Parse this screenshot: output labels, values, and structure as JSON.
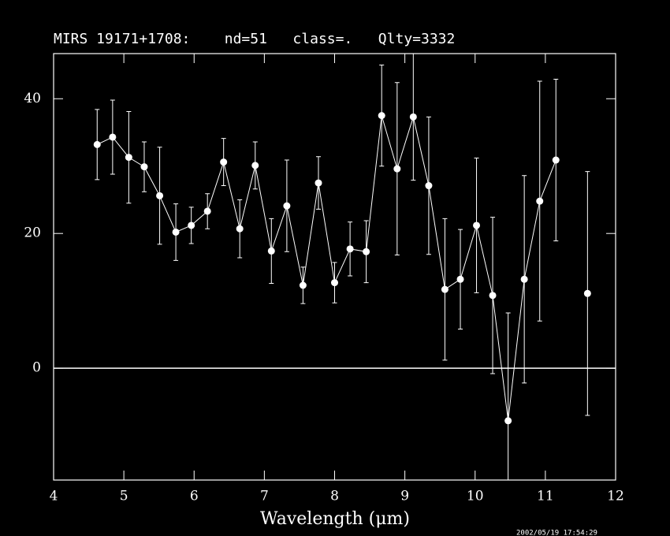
{
  "chart_data": {
    "type": "line",
    "title": "MIRS 19171+1708:    nd=51   class=.   Qlty=3332",
    "x_label": "Wavelength (μm)",
    "footer": "2002/05/19 17:54:29",
    "x": [
      4.62,
      4.84,
      5.07,
      5.29,
      5.51,
      5.74,
      5.96,
      6.19,
      6.42,
      6.65,
      6.87,
      7.1,
      7.32,
      7.55,
      7.77,
      8.0,
      8.22,
      8.45,
      8.67,
      8.89,
      9.12,
      9.34,
      9.57,
      9.79,
      10.02,
      10.25,
      10.47,
      10.7,
      10.92,
      11.15,
      11.37,
      11.6
    ],
    "series": [
      {
        "color": "#ffffff",
        "values": [
          33.2,
          34.3,
          31.3,
          29.9,
          25.6,
          20.2,
          21.2,
          23.3,
          30.6,
          20.7,
          30.1,
          17.4,
          24.1,
          12.3,
          27.5,
          12.7,
          17.7,
          17.3,
          37.5,
          29.6,
          37.3,
          27.1,
          11.7,
          13.2,
          21.2,
          10.8,
          -7.8,
          13.2,
          24.8,
          30.9,
          null,
          11.1
        ],
        "errors": [
          5.2,
          5.5,
          6.8,
          3.7,
          7.2,
          4.2,
          2.7,
          2.6,
          3.5,
          4.3,
          3.5,
          4.8,
          6.8,
          2.7,
          3.9,
          3.0,
          4.0,
          4.6,
          7.5,
          12.8,
          9.4,
          10.2,
          10.5,
          7.4,
          10.0,
          11.6,
          16.0,
          15.4,
          17.8,
          12.0,
          null,
          18.1
        ]
      }
    ],
    "reference_line": 0,
    "xlim": [
      4,
      12
    ],
    "xticks": [
      4,
      5,
      6,
      7,
      8,
      9,
      10,
      11,
      12
    ],
    "ylim": [
      -16.6,
      46.7
    ],
    "yticks": [
      0,
      20,
      40
    ]
  }
}
